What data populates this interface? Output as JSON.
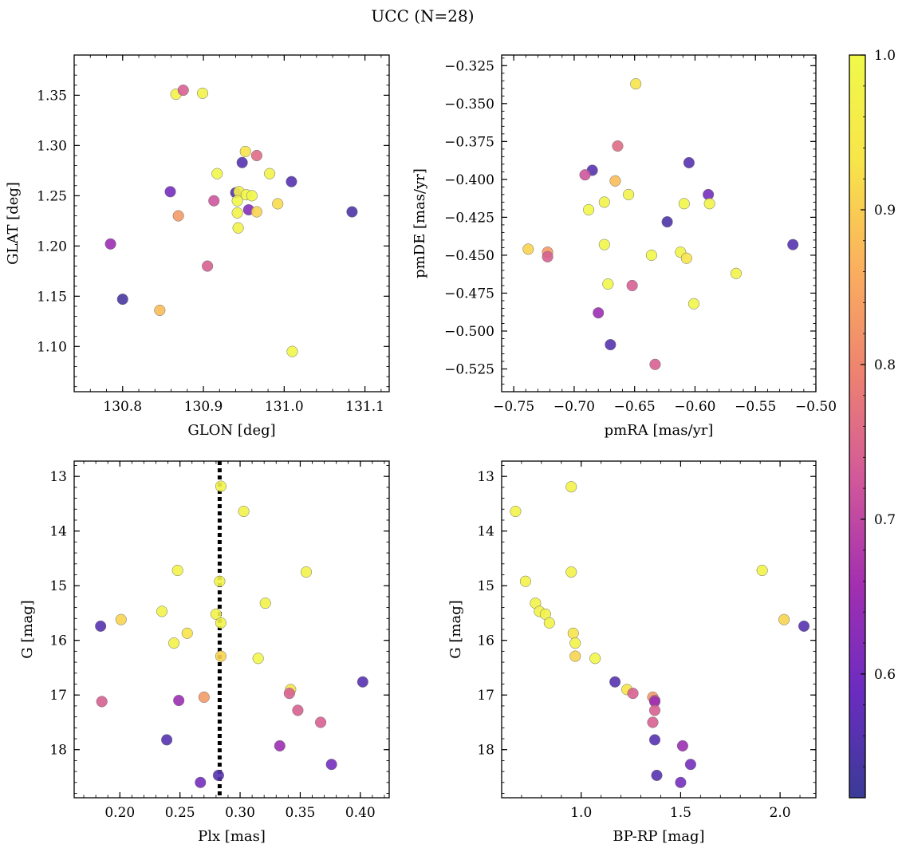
{
  "figure": {
    "title": "UCC (N=28)"
  },
  "colorbar": {
    "range": [
      0.52,
      1.0
    ],
    "ticks": [
      0.6,
      0.7,
      0.8,
      0.9,
      1.0
    ],
    "tick_labels": [
      "0.6",
      "0.7",
      "0.8",
      "0.9",
      "1.0"
    ],
    "colormap": "plasma-like",
    "stops": [
      "#3a3b96",
      "#6b2cc0",
      "#a22fb0",
      "#d1589a",
      "#ed8270",
      "#fbb05e",
      "#f7e54a",
      "#f0f94a"
    ]
  },
  "chart_data": [
    {
      "type": "scatter",
      "xlabel": "GLON [deg]",
      "ylabel": "GLAT [deg]",
      "xlim": [
        130.74,
        131.13
      ],
      "ylim": [
        1.055,
        1.39
      ],
      "xticks": [
        130.8,
        130.9,
        131.0,
        131.1
      ],
      "xtick_labels": [
        "130.8",
        "130.9",
        "131.0",
        "131.1"
      ],
      "yticks": [
        1.1,
        1.15,
        1.2,
        1.25,
        1.3,
        1.35
      ],
      "ytick_labels": [
        "1.10",
        "1.15",
        "1.20",
        "1.25",
        "1.30",
        "1.35"
      ],
      "x": [
        130.866,
        130.875,
        130.899,
        130.952,
        130.966,
        130.917,
        130.948,
        130.982,
        131.009,
        130.859,
        130.94,
        130.944,
        130.953,
        130.96,
        130.913,
        130.942,
        130.992,
        130.956,
        130.966,
        130.942,
        130.869,
        131.084,
        130.943,
        130.785,
        130.905,
        130.8,
        130.846,
        131.01
      ],
      "y": [
        1.351,
        1.355,
        1.352,
        1.294,
        1.29,
        1.272,
        1.283,
        1.272,
        1.264,
        1.254,
        1.253,
        1.254,
        1.251,
        1.25,
        1.245,
        1.245,
        1.242,
        1.236,
        1.234,
        1.233,
        1.23,
        1.234,
        1.218,
        1.202,
        1.18,
        1.147,
        1.136,
        1.095
      ],
      "c": [
        0.98,
        0.74,
        0.98,
        0.93,
        0.76,
        0.99,
        0.56,
        0.98,
        0.56,
        0.6,
        0.56,
        0.97,
        0.99,
        0.99,
        0.72,
        0.99,
        0.92,
        0.62,
        0.91,
        0.98,
        0.83,
        0.55,
        0.98,
        0.65,
        0.74,
        0.54,
        0.88,
        0.99
      ]
    },
    {
      "type": "scatter",
      "xlabel": "pmRA [mas/yr]",
      "ylabel": "pmDE [mas/yr]",
      "xlim": [
        -0.76,
        -0.5
      ],
      "ylim": [
        -0.54,
        -0.318
      ],
      "xticks": [
        -0.75,
        -0.7,
        -0.65,
        -0.6,
        -0.55,
        -0.5
      ],
      "xtick_labels": [
        "−0.75",
        "−0.70",
        "−0.65",
        "−0.60",
        "−0.55",
        "−0.50"
      ],
      "yticks": [
        -0.525,
        -0.5,
        -0.475,
        -0.45,
        -0.425,
        -0.4,
        -0.375,
        -0.35,
        -0.325
      ],
      "ytick_labels": [
        "−0.525",
        "−0.500",
        "−0.475",
        "−0.450",
        "−0.425",
        "−0.400",
        "−0.375",
        "−0.350",
        "−0.325"
      ],
      "x": [
        -0.649,
        -0.664,
        -0.605,
        -0.685,
        -0.691,
        -0.666,
        -0.655,
        -0.589,
        -0.675,
        -0.609,
        -0.588,
        -0.688,
        -0.623,
        -0.519,
        -0.738,
        -0.722,
        -0.675,
        -0.636,
        -0.612,
        -0.607,
        -0.722,
        -0.672,
        -0.652,
        -0.566,
        -0.601,
        -0.68,
        -0.67,
        -0.633
      ],
      "y": [
        -0.337,
        -0.378,
        -0.389,
        -0.394,
        -0.397,
        -0.401,
        -0.41,
        -0.41,
        -0.415,
        -0.416,
        -0.416,
        -0.42,
        -0.428,
        -0.443,
        -0.446,
        -0.448,
        -0.443,
        -0.45,
        -0.448,
        -0.452,
        -0.451,
        -0.469,
        -0.47,
        -0.462,
        -0.482,
        -0.488,
        -0.509,
        -0.522
      ],
      "c": [
        0.93,
        0.76,
        0.56,
        0.56,
        0.72,
        0.88,
        0.98,
        0.6,
        0.98,
        0.99,
        0.98,
        0.99,
        0.55,
        0.56,
        0.91,
        0.83,
        0.99,
        0.99,
        0.98,
        0.93,
        0.74,
        0.99,
        0.74,
        0.98,
        0.99,
        0.65,
        0.56,
        0.74
      ]
    },
    {
      "type": "scatter",
      "xlabel": "Plx [mas]",
      "ylabel": "G [mag]",
      "xlim": [
        0.162,
        0.424
      ],
      "ylim": [
        18.88,
        12.72
      ],
      "y_inverted": true,
      "xticks": [
        0.2,
        0.25,
        0.3,
        0.35,
        0.4
      ],
      "xtick_labels": [
        "0.20",
        "0.25",
        "0.30",
        "0.35",
        "0.40"
      ],
      "yticks": [
        13,
        14,
        15,
        16,
        17,
        18
      ],
      "ytick_labels": [
        "13",
        "14",
        "15",
        "16",
        "17",
        "18"
      ],
      "vline_x": 0.283,
      "x": [
        0.284,
        0.303,
        0.248,
        0.355,
        0.283,
        0.321,
        0.235,
        0.28,
        0.284,
        0.201,
        0.184,
        0.256,
        0.245,
        0.284,
        0.315,
        0.402,
        0.342,
        0.341,
        0.27,
        0.249,
        0.185,
        0.348,
        0.367,
        0.239,
        0.333,
        0.376,
        0.282,
        0.267
      ],
      "y": [
        13.18,
        13.64,
        14.72,
        14.75,
        14.92,
        15.32,
        15.47,
        15.52,
        15.68,
        15.62,
        15.74,
        15.87,
        16.05,
        16.29,
        16.33,
        16.76,
        16.9,
        16.97,
        17.04,
        17.1,
        17.12,
        17.28,
        17.5,
        17.82,
        17.93,
        18.27,
        18.47,
        18.6
      ],
      "c": [
        0.98,
        0.98,
        0.98,
        0.98,
        0.98,
        0.98,
        0.98,
        0.98,
        0.98,
        0.91,
        0.56,
        0.93,
        0.98,
        0.91,
        0.99,
        0.56,
        0.93,
        0.74,
        0.83,
        0.65,
        0.74,
        0.74,
        0.74,
        0.56,
        0.65,
        0.6,
        0.56,
        0.6
      ]
    },
    {
      "type": "scatter",
      "xlabel": "BP-RP [mag]",
      "ylabel": "G [mag]",
      "xlim": [
        0.6,
        2.18
      ],
      "ylim": [
        18.88,
        12.72
      ],
      "y_inverted": true,
      "xticks": [
        1.0,
        1.5,
        2.0
      ],
      "xtick_labels": [
        "1.0",
        "1.5",
        "2.0"
      ],
      "yticks": [
        13,
        14,
        15,
        16,
        17,
        18
      ],
      "ytick_labels": [
        "13",
        "14",
        "15",
        "16",
        "17",
        "18"
      ],
      "x": [
        0.95,
        0.67,
        1.91,
        0.95,
        0.72,
        0.77,
        0.79,
        0.82,
        0.84,
        2.02,
        2.12,
        0.96,
        0.97,
        0.97,
        1.07,
        1.17,
        1.23,
        1.26,
        1.36,
        1.37,
        1.37,
        1.37,
        1.36,
        1.37,
        1.51,
        1.55,
        1.38,
        1.5
      ],
      "y": [
        13.19,
        13.64,
        14.72,
        14.75,
        14.92,
        15.32,
        15.47,
        15.52,
        15.68,
        15.62,
        15.74,
        15.87,
        16.05,
        16.29,
        16.33,
        16.76,
        16.9,
        16.97,
        17.04,
        17.1,
        17.12,
        17.28,
        17.5,
        17.82,
        17.93,
        18.27,
        18.47,
        18.6
      ],
      "c": [
        0.98,
        0.98,
        0.98,
        0.98,
        0.98,
        0.98,
        0.98,
        0.98,
        0.98,
        0.91,
        0.56,
        0.93,
        0.98,
        0.91,
        0.99,
        0.56,
        0.93,
        0.74,
        0.83,
        0.74,
        0.65,
        0.74,
        0.74,
        0.56,
        0.65,
        0.6,
        0.56,
        0.6
      ]
    }
  ]
}
